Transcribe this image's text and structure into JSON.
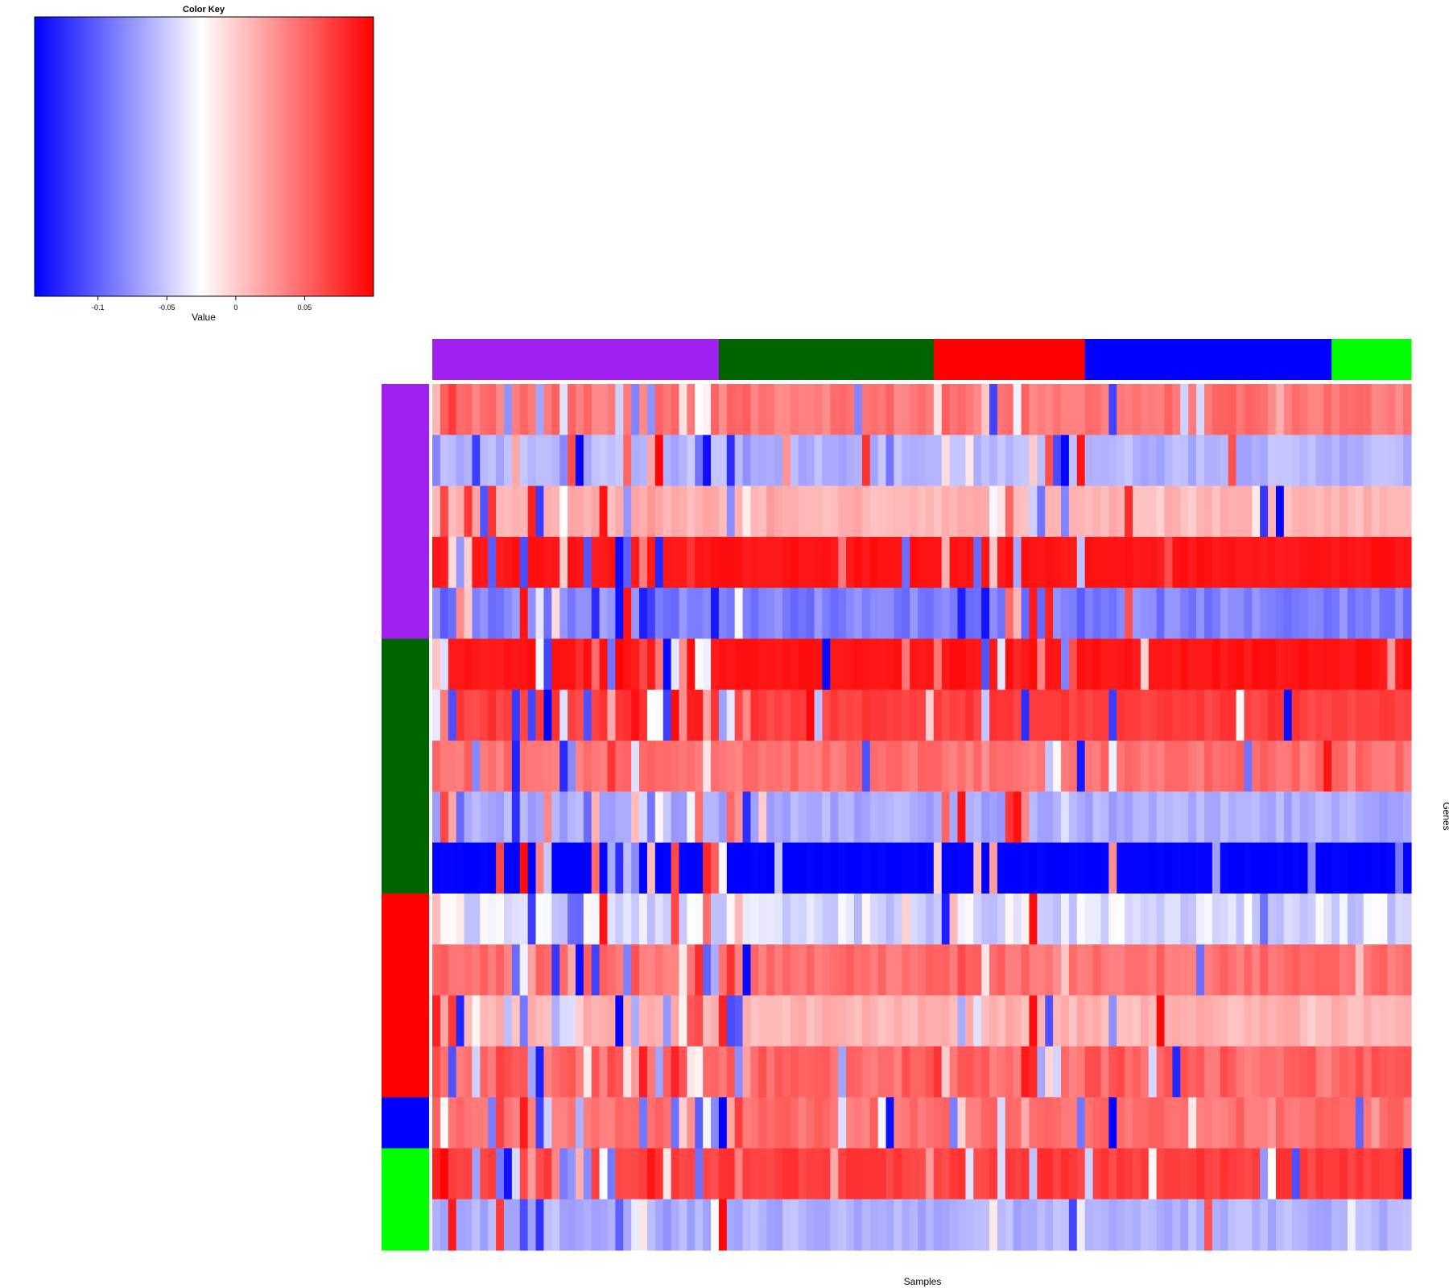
{
  "chart_data": {
    "type": "heatmap",
    "xlabel": "Samples",
    "ylabel": "Genes",
    "color_key": {
      "title": "Color Key",
      "axis_label": "Value",
      "min": -0.146,
      "max": 0.1,
      "ticks": [
        -0.1,
        -0.05,
        0,
        0.05
      ],
      "tick_labels": [
        "-0.1",
        "-0.05",
        "0",
        "0.05"
      ],
      "low_color": "#0000ff",
      "mid_color": "#ffffff",
      "high_color": "#ff0000",
      "mid_value": -0.025
    },
    "groups": [
      {
        "name": "purple",
        "color": "#a020f0"
      },
      {
        "name": "darkgreen",
        "color": "#006400"
      },
      {
        "name": "red",
        "color": "#ff0000"
      },
      {
        "name": "blue",
        "color": "#0000ff"
      },
      {
        "name": "green",
        "color": "#00ff00"
      }
    ],
    "col_groups": [
      {
        "group": "purple",
        "count": 36
      },
      {
        "group": "darkgreen",
        "count": 27
      },
      {
        "group": "red",
        "count": 19
      },
      {
        "group": "blue",
        "count": 31
      },
      {
        "group": "green",
        "count": 10
      }
    ],
    "row_groups": [
      {
        "group": "purple",
        "count": 5
      },
      {
        "group": "darkgreen",
        "count": 5
      },
      {
        "group": "red",
        "count": 4
      },
      {
        "group": "blue",
        "count": 1
      },
      {
        "group": "green",
        "count": 2
      }
    ],
    "row_patterns": [
      {
        "base": 0.042,
        "spread": 0.012
      },
      {
        "base": -0.06,
        "spread": 0.01
      },
      {
        "base": 0.012,
        "spread": 0.008
      },
      {
        "base": 0.09,
        "spread": 0.004
      },
      {
        "base": -0.085,
        "spread": 0.012
      },
      {
        "base": 0.09,
        "spread": 0.004
      },
      {
        "base": 0.07,
        "spread": 0.008
      },
      {
        "base": 0.045,
        "spread": 0.01
      },
      {
        "base": -0.065,
        "spread": 0.01
      },
      {
        "base": -0.146,
        "spread": 0.003
      },
      {
        "base": -0.04,
        "spread": 0.02
      },
      {
        "base": 0.045,
        "spread": 0.01
      },
      {
        "base": 0.012,
        "spread": 0.008
      },
      {
        "base": 0.05,
        "spread": 0.015
      },
      {
        "base": 0.045,
        "spread": 0.01
      },
      {
        "base": 0.07,
        "spread": 0.008
      },
      {
        "base": -0.062,
        "spread": 0.01
      }
    ]
  }
}
